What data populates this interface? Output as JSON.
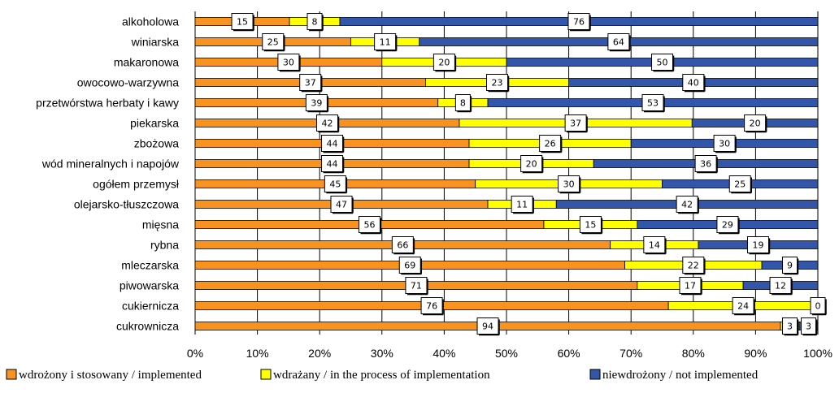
{
  "chart_data": {
    "type": "bar",
    "orientation": "horizontal",
    "stacked": true,
    "percent": true,
    "categories": [
      "alkoholowa",
      "winiarska",
      "makaronowa",
      "owocowo-warzywna",
      "przetwórstwa herbaty i kawy",
      "piekarska",
      "zbożowa",
      "wód mineralnych i napojów",
      "ogółem przemysł",
      "olejarsko-tłuszczowa",
      "mięsna",
      "rybna",
      "mleczarska",
      "piwowarska",
      "cukiernicza",
      "cukrownicza"
    ],
    "series": [
      {
        "name": "wdrożony i stosowany / implemented",
        "color": "#F7931E",
        "values": [
          15,
          25,
          30,
          37,
          39,
          42,
          44,
          44,
          45,
          47,
          56,
          66,
          69,
          71,
          76,
          94
        ]
      },
      {
        "name": "wdrażany / in the process of implementation",
        "color": "#FFFF00",
        "values": [
          8,
          11,
          20,
          23,
          8,
          37,
          26,
          20,
          30,
          11,
          15,
          14,
          22,
          17,
          24,
          3
        ]
      },
      {
        "name": "niewdrożony / not implemented",
        "color": "#3355AA",
        "values": [
          76,
          64,
          50,
          40,
          53,
          20,
          30,
          36,
          25,
          42,
          29,
          19,
          9,
          12,
          0,
          3
        ]
      }
    ],
    "xlim": [
      0,
      100
    ],
    "xticks": [
      "0%",
      "10%",
      "20%",
      "30%",
      "40%",
      "50%",
      "60%",
      "70%",
      "80%",
      "90%",
      "100%"
    ],
    "grid": "vertical",
    "legend": "bottom"
  }
}
